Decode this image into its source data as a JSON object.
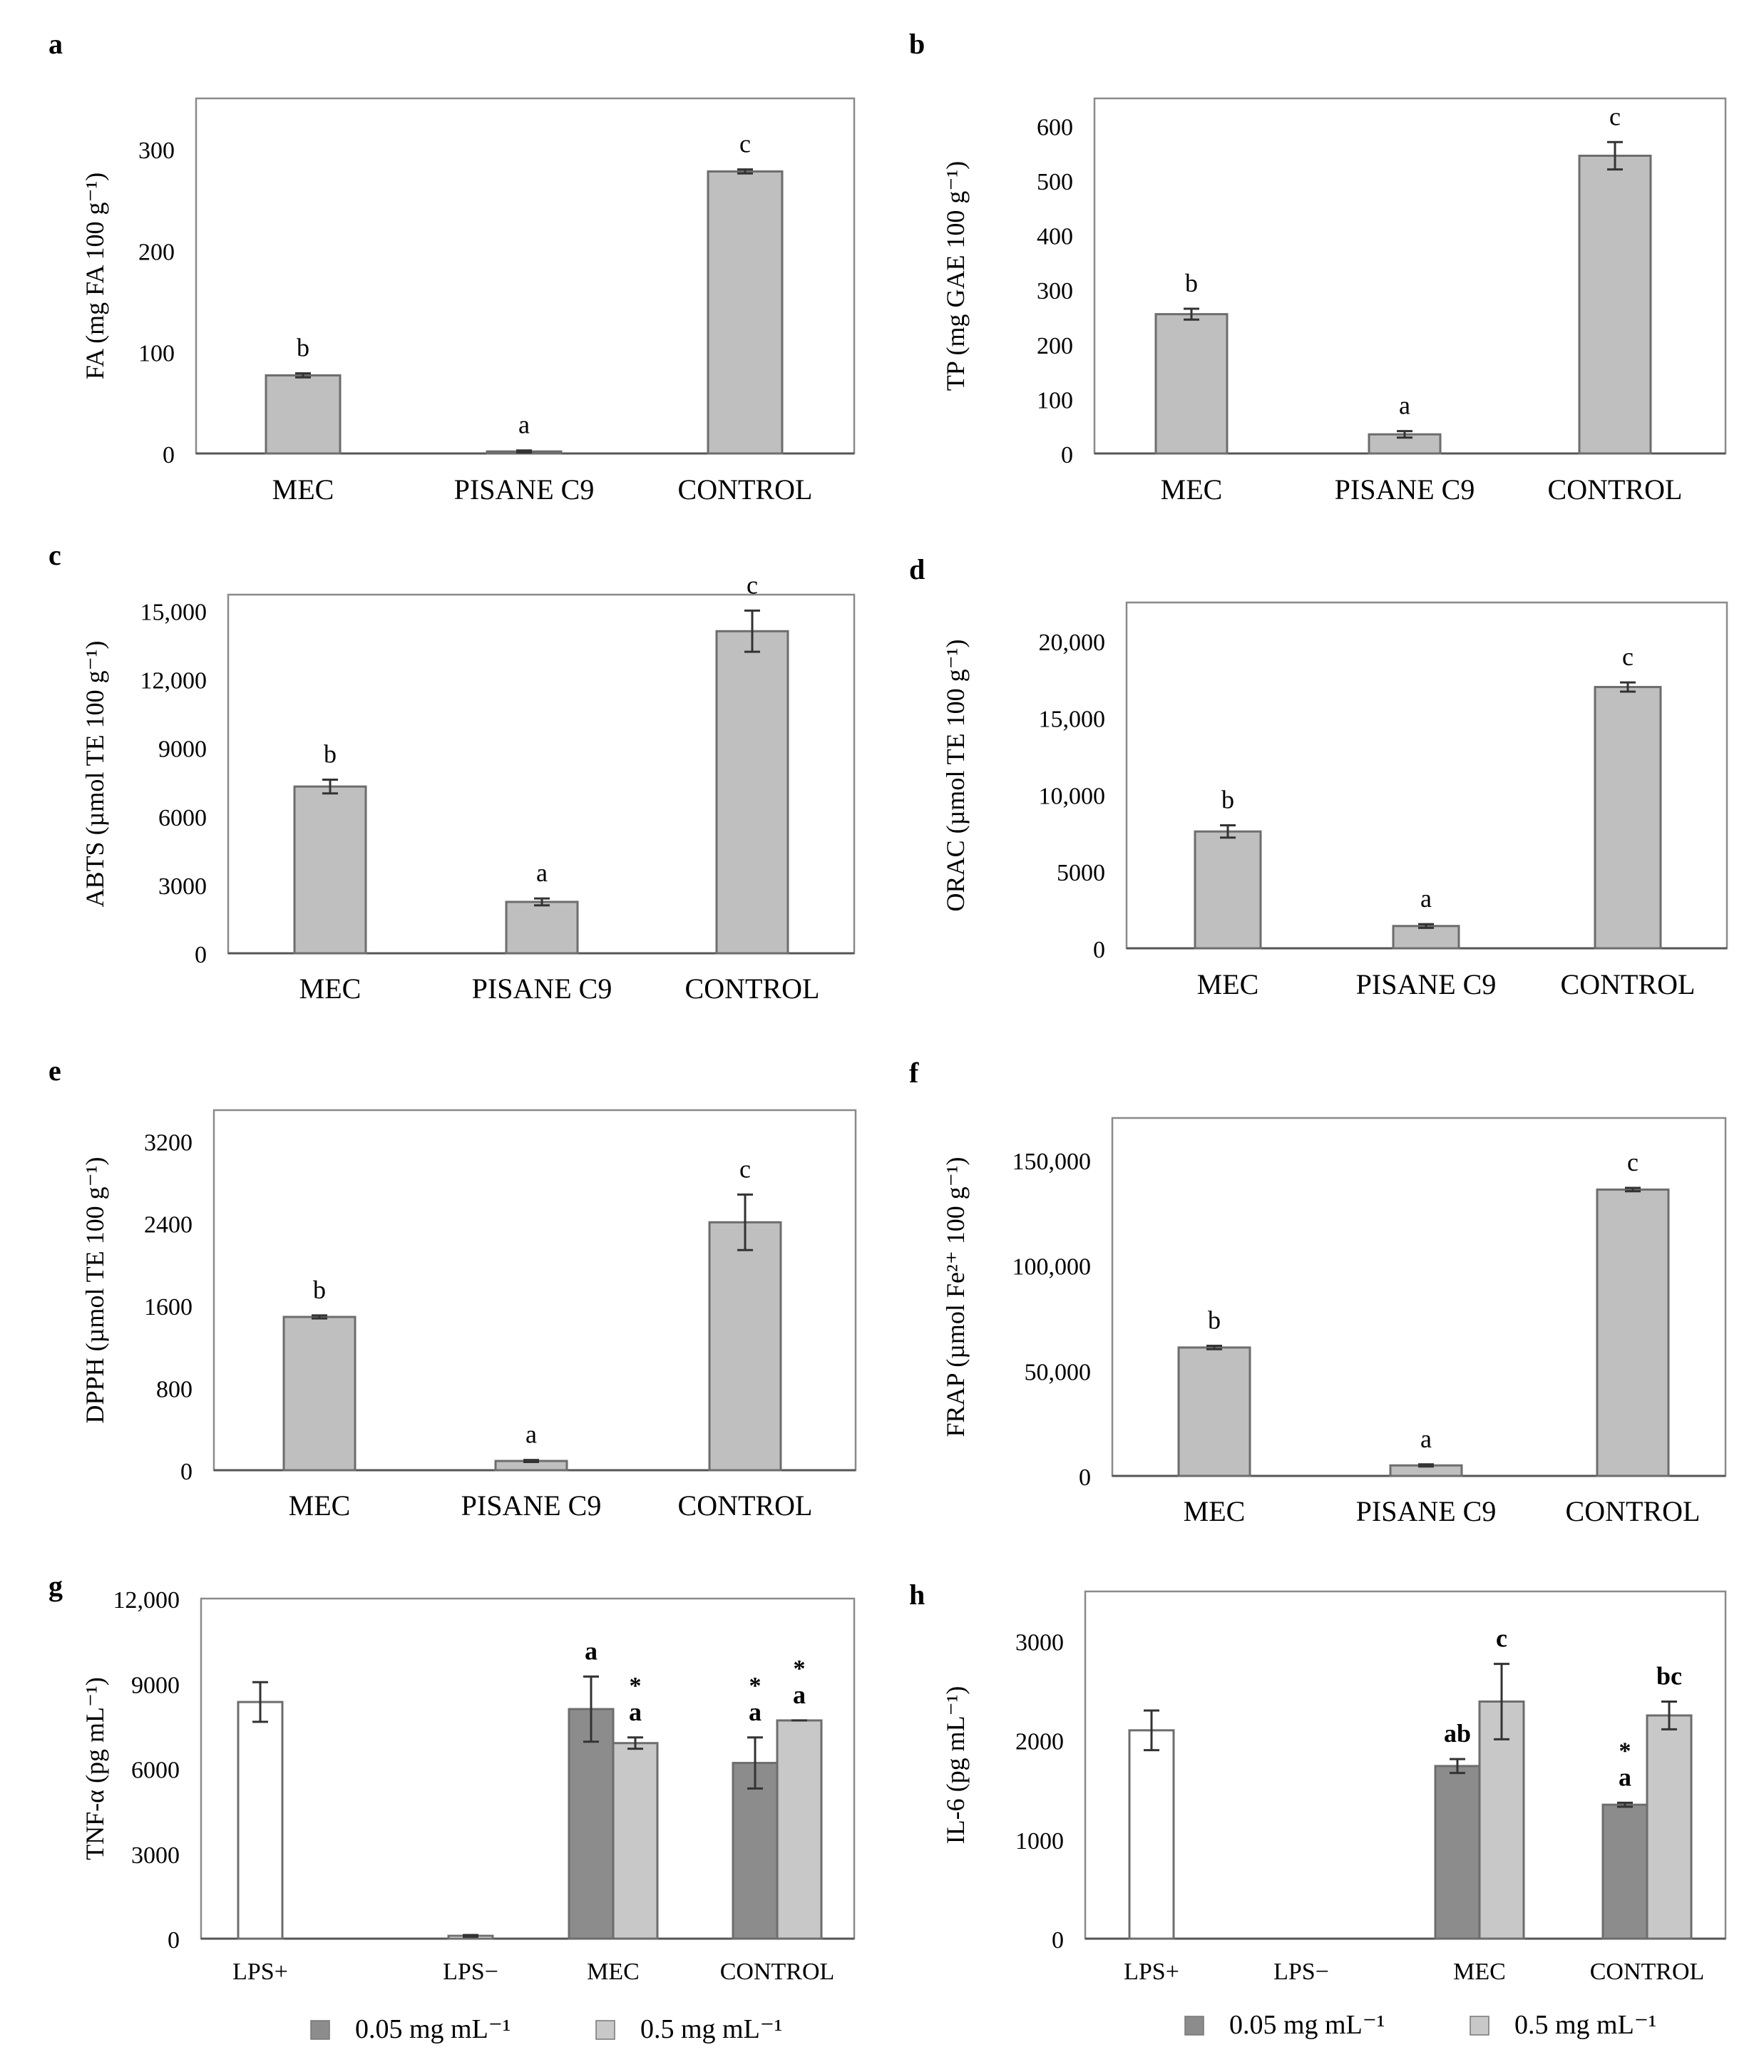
{
  "figure": {
    "panels": [
      "a",
      "b",
      "c",
      "d",
      "e",
      "f",
      "g",
      "h"
    ],
    "legend": [
      {
        "label": "0.05 mg mL⁻¹",
        "color": "#8c8c8c"
      },
      {
        "label": "0.5 mg mL⁻¹",
        "color": "#c8c8c8"
      }
    ]
  },
  "colors": {
    "bar_fill": "#bfbfbf",
    "bar_stroke": "#6d6d6d",
    "dark_bar": "#8c8c8c",
    "light_bar": "#c8c8c8",
    "white_bar": "#ffffff",
    "frame": "#8a8a8a"
  },
  "chart_data": [
    {
      "panel": "a",
      "type": "bar",
      "categories": [
        "MEC",
        "PISANE C9",
        "CONTROL"
      ],
      "values": [
        77,
        2,
        278
      ],
      "errors": [
        2,
        1,
        2
      ],
      "letters": [
        "b",
        "a",
        "c"
      ],
      "ylabel": "FA (mg FA 100 g⁻¹)",
      "yticks": [
        "0",
        "100",
        "200",
        "300"
      ],
      "ylim": [
        0,
        350
      ]
    },
    {
      "panel": "b",
      "type": "bar",
      "categories": [
        "MEC",
        "PISANE C9",
        "CONTROL"
      ],
      "values": [
        255,
        35,
        545
      ],
      "errors": [
        10,
        6,
        25
      ],
      "letters": [
        "b",
        "a",
        "c"
      ],
      "ylabel": "TP (mg GAE 100 g⁻¹)",
      "yticks": [
        "0",
        "100",
        "200",
        "300",
        "400",
        "500",
        "600"
      ],
      "ylim": [
        0,
        650
      ]
    },
    {
      "panel": "c",
      "type": "bar",
      "categories": [
        "MEC",
        "PISANE C9",
        "CONTROL"
      ],
      "values": [
        7300,
        2250,
        14100
      ],
      "errors": [
        300,
        150,
        900
      ],
      "letters": [
        "b",
        "a",
        "c"
      ],
      "ylabel": "ABTS (µmol TE 100 g⁻¹)",
      "yticks": [
        "0",
        "3000",
        "6000",
        "9000",
        "12,000",
        "15,000"
      ],
      "ylim": [
        0,
        15700
      ]
    },
    {
      "panel": "d",
      "type": "bar",
      "categories": [
        "MEC",
        "PISANE C9",
        "CONTROL"
      ],
      "values": [
        7600,
        1450,
        17000
      ],
      "errors": [
        400,
        120,
        300
      ],
      "letters": [
        "b",
        "a",
        "c"
      ],
      "ylabel": "ORAC (µmol TE 100 g⁻¹)",
      "yticks": [
        "0",
        "5000",
        "10,000",
        "15,000",
        "20,000"
      ],
      "ylim": [
        0,
        22500
      ]
    },
    {
      "panel": "e",
      "type": "bar",
      "categories": [
        "MEC",
        "PISANE C9",
        "CONTROL"
      ],
      "values": [
        1490,
        90,
        2410
      ],
      "errors": [
        15,
        10,
        270
      ],
      "letters": [
        "b",
        "a",
        "c"
      ],
      "ylabel": "DPPH (µmol TE 100 g⁻¹)",
      "yticks": [
        "0",
        "800",
        "1600",
        "2400",
        "3200"
      ],
      "ylim": [
        0,
        3500
      ]
    },
    {
      "panel": "f",
      "type": "bar",
      "categories": [
        "MEC",
        "PISANE C9",
        "CONTROL"
      ],
      "values": [
        61000,
        5000,
        136000
      ],
      "errors": [
        800,
        500,
        800
      ],
      "letters": [
        "b",
        "a",
        "c"
      ],
      "ylabel": "FRAP (µmol Fe²⁺ 100 g⁻¹)",
      "yticks": [
        "0",
        "50,000",
        "100,000",
        "150,000"
      ],
      "ylim": [
        0,
        170000
      ]
    },
    {
      "panel": "g",
      "type": "bar",
      "categories": [
        "LPS+",
        "LPS−",
        "MEC",
        "CONTROL"
      ],
      "ylabel": "TNF-α (pg mL⁻¹)",
      "yticks": [
        "0",
        "3000",
        "6000",
        "9000",
        "12,000"
      ],
      "ylim": [
        0,
        12000
      ],
      "bars": [
        {
          "category": 0,
          "style": "white",
          "value": 8350,
          "error": 700,
          "labels": []
        },
        {
          "category": 1,
          "style": "white",
          "value": 100,
          "error": 30,
          "labels": []
        },
        {
          "category": 2,
          "style": "dark",
          "value": 8100,
          "error": 1150,
          "labels": [
            "a"
          ]
        },
        {
          "category": 2,
          "style": "light",
          "value": 6900,
          "error": 200,
          "labels": [
            "a",
            "*"
          ]
        },
        {
          "category": 3,
          "style": "dark",
          "value": 6200,
          "error": 900,
          "labels": [
            "a",
            "*"
          ]
        },
        {
          "category": 3,
          "style": "light",
          "value": 7700,
          "error": 0,
          "labels": [
            "a",
            "*"
          ]
        }
      ]
    },
    {
      "panel": "h",
      "type": "bar",
      "categories": [
        "LPS+",
        "LPS−",
        "MEC",
        "CONTROL"
      ],
      "ylabel": "IL-6 (pg mL⁻¹)",
      "yticks": [
        "0",
        "1000",
        "2000",
        "3000"
      ],
      "ylim": [
        0,
        3500
      ],
      "bars": [
        {
          "category": 0,
          "style": "white",
          "value": 2100,
          "error": 200,
          "labels": []
        },
        {
          "category": 2,
          "style": "dark",
          "value": 1740,
          "error": 70,
          "labels": [
            "ab"
          ]
        },
        {
          "category": 2,
          "style": "light",
          "value": 2390,
          "error": 380,
          "labels": [
            "c"
          ]
        },
        {
          "category": 3,
          "style": "dark",
          "value": 1350,
          "error": 20,
          "labels": [
            "a",
            "*"
          ]
        },
        {
          "category": 3,
          "style": "light",
          "value": 2250,
          "error": 140,
          "labels": [
            "bc"
          ]
        }
      ]
    }
  ]
}
